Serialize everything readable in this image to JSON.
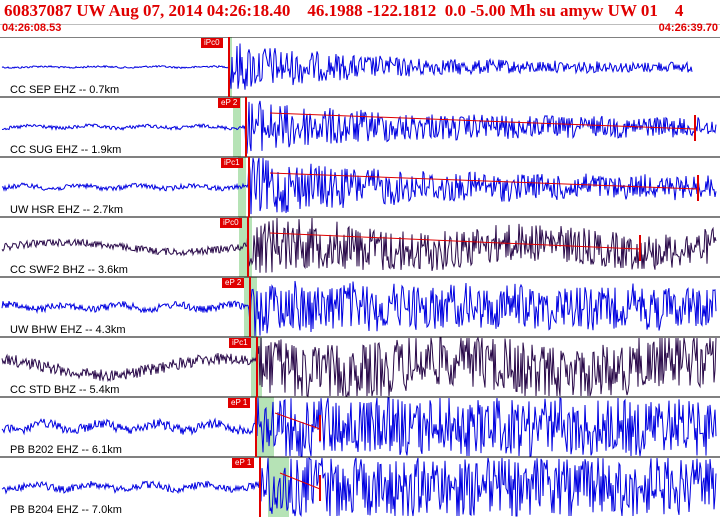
{
  "header": {
    "title": "60837087 UW Aug 07, 2014 04:26:18.40    46.1988 -122.1812  0.0 -5.00 Mh su amyw UW 01    4",
    "left_time": "04:26:08.53",
    "right_time": "04:26:39.70"
  },
  "colors": {
    "accent": "#e00000",
    "trace_blue": "#0000e0",
    "trace_dark": "#2a0a4a",
    "pick_window": "#b6e3b6",
    "background": "#ffffff"
  },
  "channels": [
    {
      "label": "CC SEP EHZ -- 0.7km",
      "pick": "iPc0",
      "color": "blue"
    },
    {
      "label": "CC SUG EHZ -- 1.9km",
      "pick": "eP 2",
      "color": "blue"
    },
    {
      "label": "UW HSR EHZ -- 2.7km",
      "pick": "iPc1",
      "color": "blue"
    },
    {
      "label": "CC SWF2 BHZ -- 3.6km",
      "pick": "iPc0",
      "color": "dark"
    },
    {
      "label": "UW BHW EHZ -- 4.3km",
      "pick": "eP 2",
      "color": "blue"
    },
    {
      "label": "CC STD BHZ -- 5.4km",
      "pick": "iPc1",
      "color": "dark"
    },
    {
      "label": "PB B202 EHZ -- 6.1km",
      "pick": "eP 1",
      "color": "blue"
    },
    {
      "label": "PB B204 EHZ -- 7.0km",
      "pick": "eP 1",
      "color": "blue"
    }
  ]
}
